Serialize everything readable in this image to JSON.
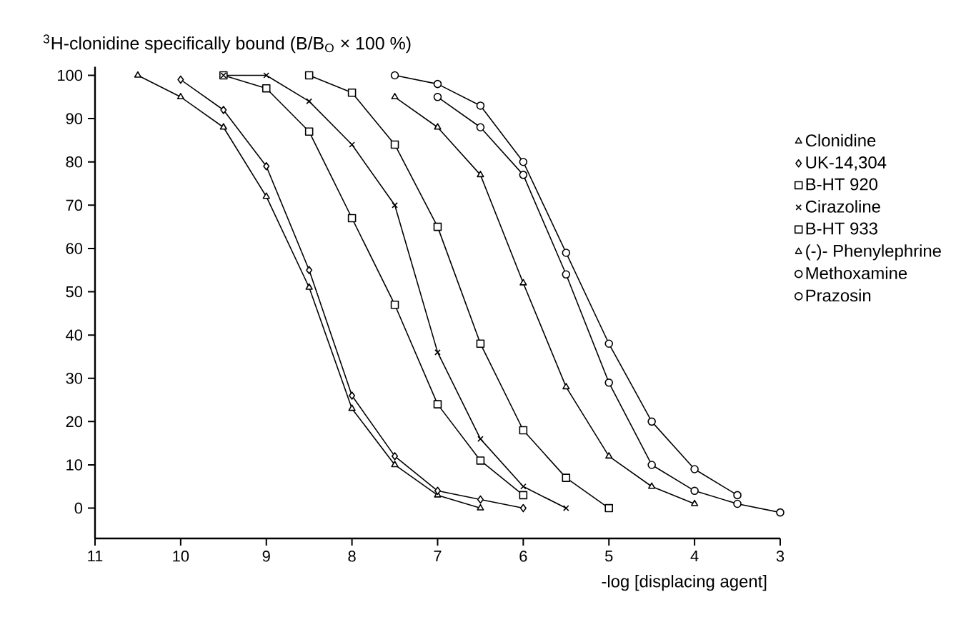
{
  "chart_data": {
    "type": "line",
    "ylabel": "$^{3}$H-clonidine specifically bound (B/B$_{O}$ × 100 %)",
    "xlabel": "-log [displacing agent]",
    "xlim": [
      11,
      3
    ],
    "xticks": [
      11,
      10,
      9,
      8,
      7,
      6,
      5,
      4,
      3
    ],
    "ylim": [
      -7,
      102
    ],
    "yticks": [
      0,
      10,
      20,
      30,
      40,
      50,
      60,
      70,
      80,
      90,
      100
    ],
    "grid": false,
    "legend": "right",
    "line_style": "solid",
    "series": [
      {
        "name": "Clonidine",
        "color": "#000000",
        "marker": "triangle",
        "x": [
          10.5,
          10,
          9.5,
          9,
          8.5,
          8,
          7.5,
          7,
          6.5
        ],
        "values": [
          100,
          95,
          88,
          72,
          51,
          23,
          10,
          3,
          0
        ]
      },
      {
        "name": "UK-14,304",
        "color": "#000000",
        "marker": "diamond",
        "x": [
          10,
          9.5,
          9,
          8.5,
          8,
          7.5,
          7,
          6.5,
          6
        ],
        "values": [
          99,
          92,
          79,
          55,
          26,
          12,
          4,
          2,
          0
        ]
      },
      {
        "name": "B-HT 920",
        "color": "#000000",
        "marker": "square",
        "x": [
          9.5,
          9,
          8.5,
          8,
          7.5,
          7,
          6.5,
          6
        ],
        "values": [
          100,
          97,
          87,
          67,
          47,
          24,
          11,
          3
        ]
      },
      {
        "name": "Cirazoline",
        "color": "#000000",
        "marker": "cross",
        "x": [
          9.5,
          9,
          8.5,
          8,
          7.5,
          7,
          6.5,
          6,
          5.5
        ],
        "values": [
          100,
          100,
          94,
          84,
          70,
          36,
          16,
          5,
          0
        ]
      },
      {
        "name": "B-HT 933",
        "color": "#000000",
        "marker": "square",
        "x": [
          8.5,
          8,
          7.5,
          7,
          6.5,
          6,
          5.5,
          5
        ],
        "values": [
          100,
          96,
          84,
          65,
          38,
          18,
          7,
          0
        ]
      },
      {
        "name": "(-)- Phenylephrine",
        "color": "#000000",
        "marker": "triangle",
        "x": [
          7.5,
          7,
          6.5,
          6,
          5.5,
          5,
          4.5,
          4
        ],
        "values": [
          95,
          88,
          77,
          52,
          28,
          12,
          5,
          1
        ]
      },
      {
        "name": "Methoxamine",
        "color": "#000000",
        "marker": "circle",
        "x": [
          7,
          6.5,
          6,
          5.5,
          5,
          4.5,
          4,
          3.5,
          3
        ],
        "values": [
          95,
          88,
          77,
          54,
          29,
          10,
          4,
          1,
          -1
        ]
      },
      {
        "name": "Prazosin",
        "color": "#000000",
        "marker": "circle",
        "x": [
          7.5,
          7,
          6.5,
          6,
          5.5,
          5,
          4.5,
          4,
          3.5
        ],
        "values": [
          100,
          98,
          93,
          80,
          59,
          38,
          20,
          9,
          3
        ]
      }
    ]
  }
}
